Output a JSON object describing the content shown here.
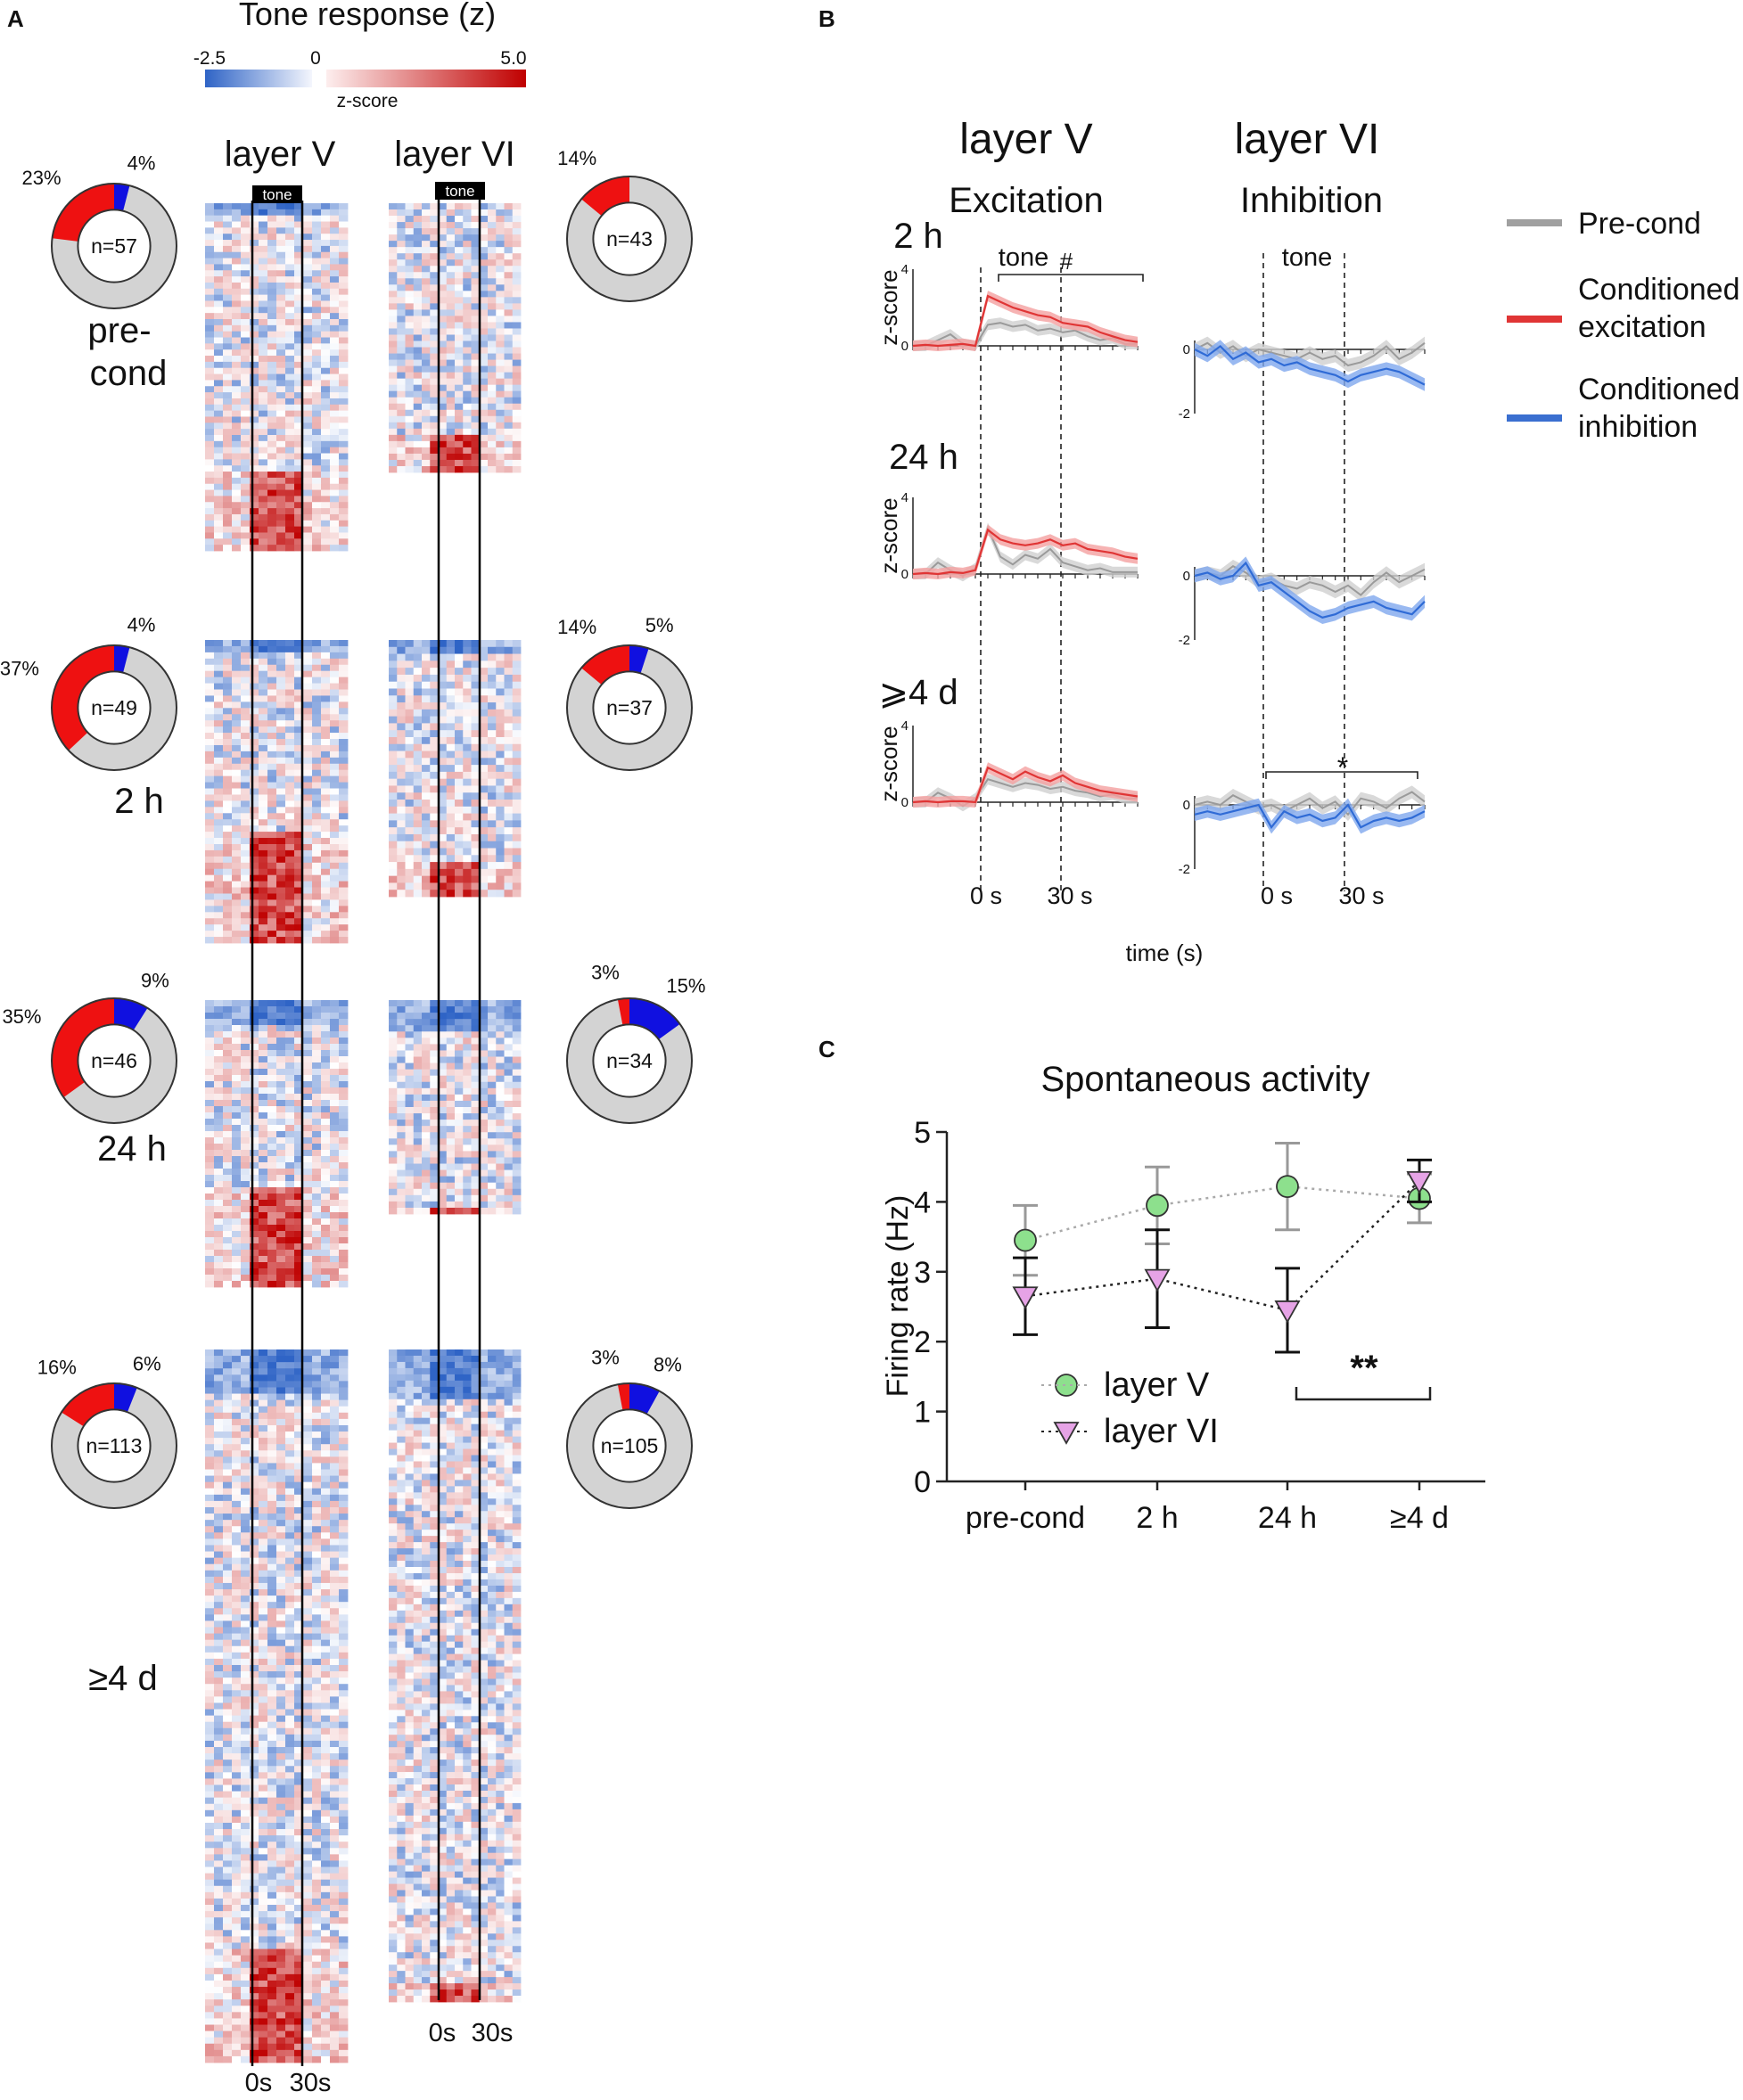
{
  "chart_data": [
    {
      "panel": "A",
      "type": "heatmap",
      "title": "Tone response (z)",
      "colorbar": {
        "label": "z-score",
        "min": -2.5,
        "mid": 0,
        "max": 5.0,
        "min_label": "-2.5",
        "mid_label": "0",
        "max_label": "5.0",
        "neg_color": "#2f64c6",
        "pos_color": "#c00000"
      },
      "columns": [
        "layer V",
        "layer VI"
      ],
      "tone_label": "tone",
      "time_labels": [
        "0s",
        "30s"
      ],
      "groups": [
        {
          "label": "pre-\ncond",
          "layerV": {
            "n": 57,
            "n_label": "n=57",
            "exc_pct": 23,
            "inh_pct": 4,
            "exc_label": "23%",
            "inh_label": "4%"
          },
          "layerVI": {
            "n": 43,
            "n_label": "n=43",
            "exc_pct": 14,
            "inh_pct": 0,
            "exc_label": "14%",
            "inh_label": ""
          }
        },
        {
          "label": "2 h",
          "layerV": {
            "n": 49,
            "n_label": "n=49",
            "exc_pct": 37,
            "inh_pct": 4,
            "exc_label": "37%",
            "inh_label": "4%"
          },
          "layerVI": {
            "n": 37,
            "n_label": "n=37",
            "exc_pct": 14,
            "inh_pct": 5,
            "exc_label": "14%",
            "inh_label": "5%"
          }
        },
        {
          "label": "24 h",
          "layerV": {
            "n": 46,
            "n_label": "n=46",
            "exc_pct": 35,
            "inh_pct": 9,
            "exc_label": "35%",
            "inh_label": "9%"
          },
          "layerVI": {
            "n": 34,
            "n_label": "n=34",
            "exc_pct": 3,
            "inh_pct": 15,
            "exc_label": "3%",
            "inh_label": "15%"
          }
        },
        {
          "label": "≥4 d",
          "layerV": {
            "n": 113,
            "n_label": "n=113",
            "exc_pct": 16,
            "inh_pct": 6,
            "exc_label": "16%",
            "inh_label": "6%"
          },
          "layerVI": {
            "n": 105,
            "n_label": "n=105",
            "exc_pct": 3,
            "inh_pct": 8,
            "exc_label": "3%",
            "inh_label": "8%"
          }
        }
      ]
    },
    {
      "panel": "B",
      "type": "line",
      "columns": [
        {
          "title": "layer V",
          "subtitle": "Excitation",
          "ylim": [
            0,
            4
          ],
          "ytick_labels": [
            "0",
            "4"
          ]
        },
        {
          "title": "layer VI",
          "subtitle": "Inhibition",
          "ylim": [
            -2,
            0.5
          ],
          "ytick_labels": [
            "0",
            "-2"
          ]
        }
      ],
      "rows": [
        "2 h",
        "24 h",
        "⩾4 d"
      ],
      "ylabel": "z-score",
      "xlabel": "time (s)",
      "xtick_labels": [
        "0 s",
        "30 s"
      ],
      "tone_label": "tone",
      "annotations": {
        "hash": "#",
        "star": "*"
      },
      "legend": [
        {
          "label": "Pre-cond",
          "color": "#a0a0a0"
        },
        {
          "label": "Conditioned\nexcitation",
          "color": "#e03535"
        },
        {
          "label": "Conditioned\ninhibition",
          "color": "#3a6fd0"
        }
      ],
      "x": [
        -30,
        -25,
        -20,
        -15,
        -10,
        -5,
        0,
        5,
        10,
        15,
        20,
        25,
        30,
        35,
        40,
        45,
        50,
        55,
        60
      ],
      "series": {
        "layerV_2h_cond": [
          0,
          0.05,
          0,
          0.05,
          0.1,
          0,
          2.6,
          2.3,
          2.0,
          1.8,
          1.6,
          1.5,
          1.2,
          1.1,
          1.0,
          0.7,
          0.5,
          0.3,
          0.2
        ],
        "layerV_2h_pre": [
          0,
          0,
          0.3,
          0.6,
          0.1,
          0,
          1.1,
          1.2,
          1.0,
          1.1,
          0.8,
          0.9,
          0.7,
          0.8,
          0.5,
          0.3,
          0.4,
          0.1,
          0.1
        ],
        "layerV_24h_cond": [
          0,
          0.05,
          0,
          0.1,
          0.05,
          0.2,
          2.3,
          1.8,
          1.6,
          1.5,
          1.6,
          1.8,
          1.5,
          1.6,
          1.3,
          1.2,
          1.1,
          0.9,
          0.8
        ],
        "layerV_24h_pre": [
          0,
          0,
          0.6,
          0.2,
          -0.1,
          0.3,
          2.4,
          0.9,
          0.5,
          1.0,
          0.8,
          1.3,
          0.6,
          0.4,
          0.2,
          0.3,
          0.1,
          0.1,
          0.1
        ],
        "layerV_4d_cond": [
          0,
          0.05,
          0,
          0.05,
          0.05,
          0,
          1.8,
          1.5,
          1.2,
          1.6,
          1.3,
          1.1,
          1.4,
          1.0,
          0.8,
          0.6,
          0.5,
          0.4,
          0.3
        ],
        "layerV_4d_pre": [
          0,
          0,
          0.5,
          0.2,
          -0.2,
          0.2,
          1.2,
          1.0,
          0.8,
          1.0,
          0.9,
          0.7,
          0.8,
          0.6,
          0.5,
          0.3,
          0.4,
          0.2,
          0.2
        ],
        "layerVI_2h_cond": [
          0,
          -0.2,
          0.1,
          -0.3,
          -0.1,
          -0.4,
          -0.3,
          -0.5,
          -0.4,
          -0.6,
          -0.7,
          -0.8,
          -1.0,
          -0.8,
          -0.7,
          -0.6,
          -0.7,
          -0.9,
          -1.1
        ],
        "layerVI_2h_pre": [
          0,
          0.2,
          -0.1,
          0.1,
          -0.2,
          0.0,
          -0.1,
          -0.2,
          -0.3,
          -0.1,
          -0.3,
          -0.2,
          -0.5,
          -0.4,
          -0.2,
          0.1,
          -0.3,
          -0.1,
          0.2
        ],
        "layerVI_24h_cond": [
          0,
          0.1,
          -0.1,
          0.0,
          0.4,
          -0.3,
          -0.2,
          -0.5,
          -0.8,
          -1.1,
          -1.3,
          -1.2,
          -1.0,
          -0.9,
          -0.8,
          -1.0,
          -1.1,
          -1.2,
          -0.8
        ],
        "layerVI_24h_pre": [
          0,
          0.1,
          0.0,
          0.3,
          0.1,
          -0.2,
          -0.1,
          -0.3,
          -0.4,
          -0.2,
          -0.3,
          -0.5,
          -0.3,
          -0.6,
          -0.2,
          0.1,
          -0.2,
          0.0,
          0.2
        ],
        "layerVI_4d_cond": [
          -0.3,
          -0.2,
          -0.3,
          -0.2,
          -0.1,
          0.0,
          -0.7,
          -0.2,
          -0.4,
          -0.3,
          -0.5,
          -0.4,
          0.0,
          -0.7,
          -0.5,
          -0.4,
          -0.5,
          -0.4,
          -0.2
        ],
        "layerVI_4d_pre": [
          0,
          0.1,
          0.0,
          0.3,
          0.1,
          -0.1,
          0.0,
          -0.2,
          0.0,
          0.2,
          -0.1,
          0.1,
          -0.3,
          0.2,
          0.1,
          -0.1,
          0.2,
          0.4,
          0.1
        ]
      }
    },
    {
      "panel": "C",
      "type": "scatter",
      "title": "Spontaneous activity",
      "ylabel": "Firing rate (Hz)",
      "categories": [
        "pre-cond",
        "2 h",
        "24 h",
        "≥4 d"
      ],
      "ylim": [
        0,
        5
      ],
      "ytick_labels": [
        "0",
        "1",
        "2",
        "3",
        "4",
        "5"
      ],
      "significance": "**",
      "series": [
        {
          "name": "layer V",
          "values": [
            3.45,
            3.95,
            4.22,
            4.05
          ],
          "err": [
            0.5,
            0.55,
            0.62,
            0.35
          ],
          "color": "#8de08d",
          "err_color": "#999999"
        },
        {
          "name": "layer VI",
          "values": [
            2.65,
            2.9,
            2.45,
            4.3
          ],
          "err": [
            0.55,
            0.7,
            0.6,
            0.3
          ],
          "color": "#e6a3e6",
          "err_color": "#111111"
        }
      ]
    }
  ],
  "panels": {
    "a": "A",
    "b": "B",
    "c": "C"
  }
}
